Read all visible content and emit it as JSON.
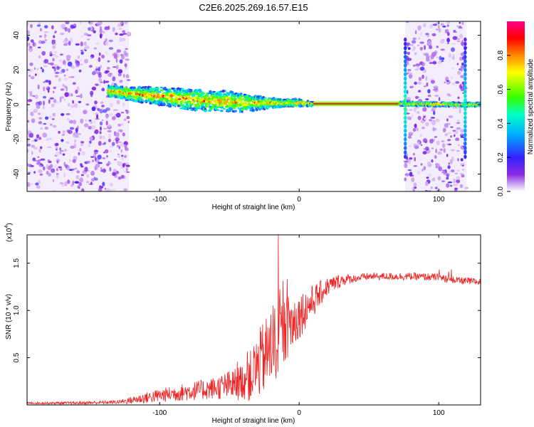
{
  "title": "C2E6.2025.269.16.57.E15",
  "chart_data": [
    {
      "type": "heatmap",
      "xlabel": "Height of straight line (km)",
      "ylabel": "Frequency (Hz)",
      "xlim": [
        -195,
        130
      ],
      "ylim": [
        -50,
        48
      ],
      "xticks": [
        -100,
        0,
        100
      ],
      "yticks": [
        -40,
        -20,
        0,
        20,
        40
      ],
      "colorbar": {
        "label": "Normalized spectral amplitude",
        "range": [
          0,
          1
        ],
        "ticks": [
          0.0,
          0.2,
          0.4,
          0.6,
          0.8
        ],
        "tick_labels": [
          "0.0",
          "0.2",
          "0.4",
          "0.6",
          "0.8"
        ]
      },
      "noise_regions_km": [
        [
          -195,
          -122
        ],
        [
          76,
          120
        ]
      ],
      "signal_band": {
        "x": [
          -137,
          -120,
          -100,
          -80,
          -60,
          -50,
          -40,
          -30,
          -20,
          -10,
          0,
          10,
          72,
          120,
          130
        ],
        "center_hz": [
          8,
          6,
          5,
          3,
          2,
          2,
          1,
          1,
          1,
          1,
          1,
          0.5,
          0.5,
          0,
          0
        ],
        "halfwidth_hz": [
          3,
          4,
          5,
          6,
          6,
          6,
          5,
          4,
          3,
          2,
          2,
          1,
          1,
          1,
          1
        ]
      }
    },
    {
      "type": "line",
      "xlabel": "Height of straight line (km)",
      "ylabel": "SNR (10 * v/v)",
      "multiplier": "(x10",
      "multiplier_exp": "4",
      "multiplier_close": ")",
      "xlim": [
        -195,
        130
      ],
      "ylim": [
        0,
        1.8
      ],
      "xticks": [
        -100,
        0,
        100
      ],
      "yticks": [
        0.5,
        1.0,
        1.5
      ],
      "ytick_labels": [
        "0.5",
        "1.0",
        "1.5"
      ],
      "color": "#ee2222",
      "trend": {
        "x": [
          -195,
          -160,
          -130,
          -120,
          -100,
          -80,
          -60,
          -45,
          -35,
          -28,
          -20,
          -10,
          0,
          10,
          20,
          30,
          50,
          80,
          100,
          110,
          130
        ],
        "y": [
          0.02,
          0.02,
          0.03,
          0.05,
          0.1,
          0.14,
          0.18,
          0.22,
          0.3,
          0.45,
          0.6,
          0.8,
          0.95,
          1.1,
          1.25,
          1.32,
          1.36,
          1.36,
          1.35,
          1.32,
          1.3
        ]
      },
      "noise_amplitude": {
        "x": [
          -195,
          -130,
          -110,
          -60,
          -40,
          -30,
          -20,
          -10,
          0,
          20,
          40,
          130
        ],
        "amp": [
          0.01,
          0.02,
          0.06,
          0.12,
          0.2,
          0.35,
          0.45,
          0.35,
          0.25,
          0.1,
          0.04,
          0.04
        ]
      },
      "spike": {
        "x": -15,
        "y": 1.8
      }
    }
  ]
}
